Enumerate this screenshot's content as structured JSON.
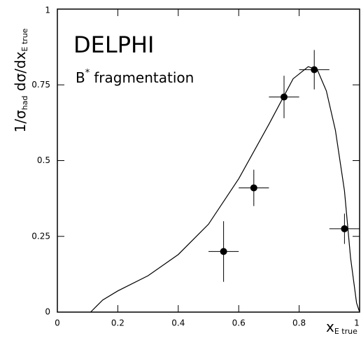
{
  "chart_data": {
    "type": "scatter",
    "annotations": {
      "experiment": "DELPHI",
      "particle": "B",
      "star": "*",
      "process": "fragmentation"
    },
    "y_label": {
      "lead": "1/σ",
      "sub1": "had",
      "mid": " dσ/dx",
      "sub2": "E true"
    },
    "x_label": {
      "main": "x",
      "sub": "E true"
    },
    "xlim": [
      0,
      1
    ],
    "ylim": [
      0,
      1
    ],
    "xticks": [
      0,
      0.2,
      0.4,
      0.6,
      0.8,
      1
    ],
    "yticks": [
      0,
      0.25,
      0.5,
      0.75,
      1
    ],
    "color": "#000000",
    "points": {
      "x": [
        0.55,
        0.65,
        0.75,
        0.85,
        0.95
      ],
      "values": [
        0.2,
        0.41,
        0.71,
        0.8,
        0.275
      ],
      "xerr": [
        0.05,
        0.05,
        0.05,
        0.05,
        0.05
      ],
      "yerr": [
        0.1,
        0.06,
        0.07,
        0.065,
        0.05
      ]
    },
    "curve": {
      "x": [
        0.11,
        0.13,
        0.15,
        0.2,
        0.3,
        0.4,
        0.5,
        0.6,
        0.7,
        0.78,
        0.83,
        0.86,
        0.89,
        0.92,
        0.95,
        0.97,
        0.99,
        1.0
      ],
      "values": [
        0,
        0.02,
        0.04,
        0.07,
        0.12,
        0.19,
        0.29,
        0.44,
        0.62,
        0.77,
        0.81,
        0.8,
        0.73,
        0.6,
        0.4,
        0.18,
        0.03,
        0
      ]
    }
  }
}
